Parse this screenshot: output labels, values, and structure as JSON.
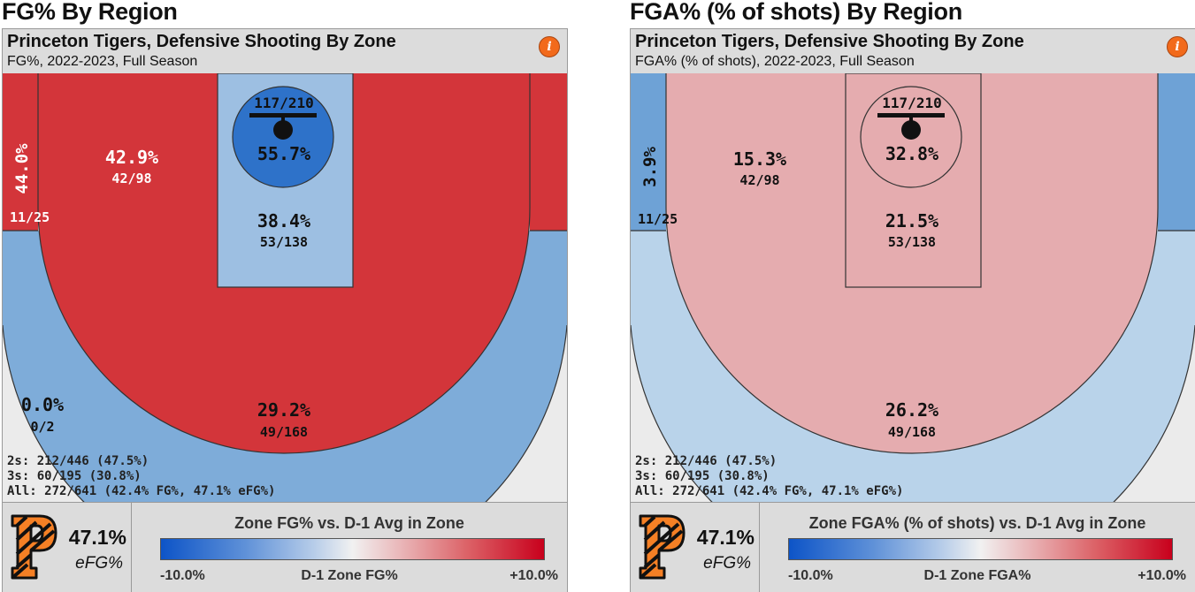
{
  "panels": [
    {
      "title": "FG% By Region",
      "header": {
        "title": "Princeton Tigers, Defensive Shooting By Zone",
        "subtitle": "FG%, 2022-2023, Full Season"
      },
      "zones": {
        "left_corner": {
          "value": "44.0%",
          "makes": "11/25"
        },
        "right_corner": {
          "value": "",
          "makes": ""
        },
        "mid_range": {
          "value": "42.9%",
          "makes": "42/98"
        },
        "paint": {
          "value": "38.4%",
          "makes": "53/138"
        },
        "rim": {
          "value": "55.7%",
          "makes": "117/210"
        },
        "above_break_3": {
          "value": "29.2%",
          "makes": "49/168"
        },
        "deep_3": {
          "value": "0.0%",
          "makes": "0/2"
        }
      },
      "summary": [
        "2s: 212/446 (47.5%)",
        "3s: 60/195 (30.8%)",
        "All: 272/641 (42.4% FG%, 47.1% eFG%)"
      ],
      "efg": "47.1%",
      "efg_label": "eFG%",
      "legend": {
        "title": "Zone FG% vs. D-1 Avg in Zone",
        "min": "-10.0%",
        "mid": "D-1 Zone FG%",
        "max": "+10.0%"
      }
    },
    {
      "title": "FGA% (% of shots) By Region",
      "header": {
        "title": "Princeton Tigers, Defensive Shooting By Zone",
        "subtitle": "FGA% (% of shots), 2022-2023, Full Season"
      },
      "zones": {
        "left_corner": {
          "value": "3.9%",
          "makes": "11/25"
        },
        "right_corner": {
          "value": "",
          "makes": ""
        },
        "mid_range": {
          "value": "15.3%",
          "makes": "42/98"
        },
        "paint": {
          "value": "21.5%",
          "makes": "53/138"
        },
        "rim": {
          "value": "32.8%",
          "makes": "117/210"
        },
        "above_break_3": {
          "value": "26.2%",
          "makes": "49/168"
        },
        "deep_3": {
          "value": "",
          "makes": ""
        }
      },
      "summary": [
        "2s: 212/446 (47.5%)",
        "3s: 60/195 (30.8%)",
        "All: 272/641 (42.4% FG%, 47.1% eFG%)"
      ],
      "efg": "47.1%",
      "efg_label": "eFG%",
      "legend": {
        "title": "Zone FGA% (% of shots) vs. D-1 Avg in Zone",
        "min": "-10.0%",
        "mid": "D-1 Zone FGA%",
        "max": "+10.0%"
      }
    }
  ],
  "chart_data": [
    {
      "type": "heatmap",
      "title": "FG% By Region",
      "metric": "FG%",
      "zones": [
        {
          "zone": "Left corner 3",
          "pct": 44.0,
          "made": 11,
          "att": 25,
          "color": "#d3353a"
        },
        {
          "zone": "Right corner 3",
          "pct": null,
          "made": null,
          "att": null,
          "color": "#d3353a"
        },
        {
          "zone": "Mid-range",
          "pct": 42.9,
          "made": 42,
          "att": 98,
          "color": "#d3353a"
        },
        {
          "zone": "Paint (non-rim)",
          "pct": 38.4,
          "made": 53,
          "att": 138,
          "color": "#9dbfe2"
        },
        {
          "zone": "Rim",
          "pct": 55.7,
          "made": 117,
          "att": 210,
          "color": "#2e72c9"
        },
        {
          "zone": "Above-break 3",
          "pct": 29.2,
          "made": 49,
          "att": 168,
          "color": "#7eacd9"
        },
        {
          "zone": "Deep 3",
          "pct": 0.0,
          "made": 0,
          "att": 2,
          "color": "#ebebeb"
        }
      ],
      "legend": {
        "title": "Zone FG% vs. D-1 Avg in Zone",
        "range": [
          -10,
          10
        ],
        "low_color": "#0d54c7",
        "high_color": "#c8001c"
      }
    },
    {
      "type": "heatmap",
      "title": "FGA% (% of shots) By Region",
      "metric": "FGA% (% of shots)",
      "zones": [
        {
          "zone": "Left corner 3",
          "pct": 3.9,
          "made": 11,
          "att": 25,
          "color": "#6ea2d6"
        },
        {
          "zone": "Right corner 3",
          "pct": null,
          "made": null,
          "att": null,
          "color": "#6ea2d6"
        },
        {
          "zone": "Mid-range",
          "pct": 15.3,
          "made": 42,
          "att": 98,
          "color": "#e5acaf"
        },
        {
          "zone": "Paint (non-rim)",
          "pct": 21.5,
          "made": 53,
          "att": 138,
          "color": "#e5acaf"
        },
        {
          "zone": "Rim",
          "pct": 32.8,
          "made": 117,
          "att": 210,
          "color": "#e5acaf"
        },
        {
          "zone": "Above-break 3",
          "pct": 26.2,
          "made": 49,
          "att": 168,
          "color": "#b9d3ea"
        },
        {
          "zone": "Deep 3",
          "pct": null,
          "made": null,
          "att": null,
          "color": "#ebebeb"
        }
      ],
      "legend": {
        "title": "Zone FGA% (% of shots) vs. D-1 Avg in Zone",
        "range": [
          -10,
          10
        ],
        "low_color": "#0d54c7",
        "high_color": "#c8001c"
      }
    }
  ]
}
